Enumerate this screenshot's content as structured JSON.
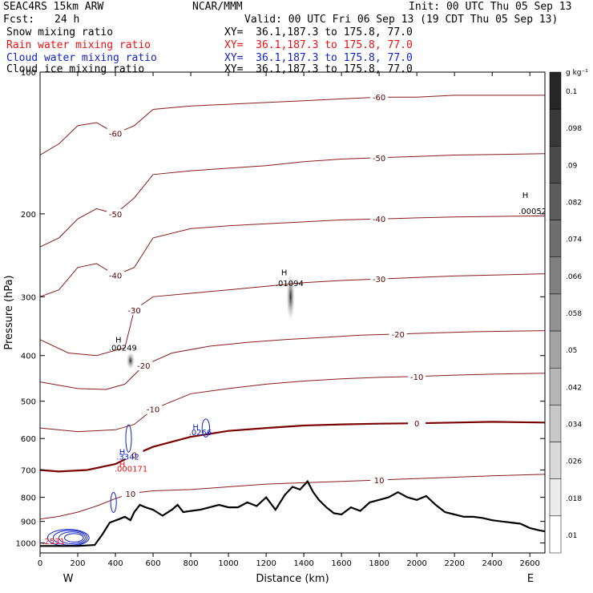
{
  "header": {
    "model": "SEAC4RS 15km ARW",
    "center": "NCAR/MMM",
    "init": "Init: 00 UTC Thu 05 Sep 13",
    "fcst_label": "Fcst:",
    "fcst_value": "24 h",
    "valid": "Valid: 00 UTC Fri 06 Sep 13 (19 CDT Thu 05 Sep 13)"
  },
  "fields": [
    {
      "name": "Snow mixing ratio",
      "xy": "XY=  36.1,187.3 to 175.8, 77.0",
      "color": "#000000"
    },
    {
      "name": "Rain water mixing ratio",
      "xy": "XY=  36.1,187.3 to 175.8, 77.0",
      "color": "#ee1111"
    },
    {
      "name": "Cloud water mixing ratio",
      "xy": "XY=  36.1,187.3 to 175.8, 77.0",
      "color": "#1122cc"
    },
    {
      "name": "Cloud ice mixing ratio",
      "xy": "XY=  36.1,187.3 to 175.8, 77.0",
      "color": "#000000"
    }
  ],
  "chart_data": {
    "type": "contour cross-section",
    "xlabel": "Distance (km)",
    "ylabel": "Pressure (hPa)",
    "x_range": [
      0,
      2680
    ],
    "y_range": [
      1050,
      100
    ],
    "y_scale": "log",
    "x_ticks": [
      0,
      200,
      400,
      600,
      800,
      1000,
      1200,
      1400,
      1600,
      1800,
      2000,
      2200,
      2400,
      2600
    ],
    "y_ticks": [
      100,
      200,
      300,
      400,
      500,
      600,
      700,
      800,
      900,
      1000
    ],
    "x_end_labels": {
      "left": "W",
      "right": "E"
    },
    "isotherms": [
      {
        "label": "10",
        "points": [
          [
            0,
            890
          ],
          [
            100,
            878
          ],
          [
            200,
            860
          ],
          [
            300,
            835
          ],
          [
            400,
            805
          ],
          [
            480,
            785
          ],
          [
            600,
            775
          ],
          [
            800,
            770
          ],
          [
            1000,
            760
          ],
          [
            1200,
            750
          ],
          [
            1400,
            745
          ],
          [
            1600,
            740
          ],
          [
            1800,
            735
          ],
          [
            2000,
            730
          ],
          [
            2200,
            725
          ],
          [
            2400,
            720
          ],
          [
            2680,
            715
          ]
        ]
      },
      {
        "label": "0",
        "points": [
          [
            0,
            700
          ],
          [
            100,
            705
          ],
          [
            250,
            700
          ],
          [
            400,
            680
          ],
          [
            500,
            650
          ],
          [
            600,
            625
          ],
          [
            800,
            595
          ],
          [
            1000,
            578
          ],
          [
            1200,
            570
          ],
          [
            1400,
            563
          ],
          [
            1600,
            560
          ],
          [
            1800,
            558
          ],
          [
            2000,
            557
          ],
          [
            2200,
            555
          ],
          [
            2400,
            553
          ],
          [
            2680,
            555
          ]
        ]
      },
      {
        "label": "-10",
        "points": [
          [
            0,
            570
          ],
          [
            200,
            580
          ],
          [
            400,
            575
          ],
          [
            500,
            560
          ],
          [
            600,
            520
          ],
          [
            800,
            482
          ],
          [
            1000,
            470
          ],
          [
            1200,
            460
          ],
          [
            1400,
            453
          ],
          [
            1600,
            448
          ],
          [
            1800,
            445
          ],
          [
            2000,
            443
          ],
          [
            2200,
            440
          ],
          [
            2400,
            438
          ],
          [
            2680,
            436
          ]
        ]
      },
      {
        "label": "-20",
        "points": [
          [
            0,
            455
          ],
          [
            200,
            470
          ],
          [
            350,
            472
          ],
          [
            450,
            460
          ],
          [
            550,
            420
          ],
          [
            700,
            395
          ],
          [
            900,
            382
          ],
          [
            1100,
            375
          ],
          [
            1300,
            370
          ],
          [
            1500,
            366
          ],
          [
            1700,
            362
          ],
          [
            1900,
            360
          ],
          [
            2100,
            358
          ],
          [
            2300,
            356
          ],
          [
            2680,
            354
          ]
        ]
      },
      {
        "label": "-30",
        "points": [
          [
            0,
            370
          ],
          [
            150,
            395
          ],
          [
            300,
            400
          ],
          [
            450,
            385
          ],
          [
            500,
            320
          ],
          [
            600,
            300
          ],
          [
            800,
            295
          ],
          [
            1000,
            290
          ],
          [
            1200,
            285
          ],
          [
            1400,
            280
          ],
          [
            1600,
            277
          ],
          [
            1800,
            275
          ],
          [
            2000,
            273
          ],
          [
            2200,
            271
          ],
          [
            2680,
            268
          ]
        ]
      },
      {
        "label": "-40",
        "points": [
          [
            0,
            300
          ],
          [
            100,
            290
          ],
          [
            200,
            260
          ],
          [
            300,
            255
          ],
          [
            400,
            270
          ],
          [
            500,
            260
          ],
          [
            600,
            225
          ],
          [
            800,
            215
          ],
          [
            1000,
            212
          ],
          [
            1200,
            210
          ],
          [
            1400,
            208
          ],
          [
            1600,
            206
          ],
          [
            1800,
            205
          ],
          [
            2000,
            204
          ],
          [
            2200,
            203
          ],
          [
            2680,
            202
          ]
        ]
      },
      {
        "label": "-50",
        "points": [
          [
            0,
            235
          ],
          [
            100,
            225
          ],
          [
            200,
            205
          ],
          [
            300,
            195
          ],
          [
            400,
            200
          ],
          [
            500,
            185
          ],
          [
            600,
            165
          ],
          [
            800,
            162
          ],
          [
            1000,
            160
          ],
          [
            1200,
            158
          ],
          [
            1400,
            155
          ],
          [
            1600,
            153
          ],
          [
            1800,
            152
          ],
          [
            2000,
            151
          ],
          [
            2200,
            150
          ],
          [
            2680,
            149
          ]
        ]
      },
      {
        "label": "-60",
        "points": [
          [
            0,
            150
          ],
          [
            100,
            142
          ],
          [
            200,
            130
          ],
          [
            300,
            128
          ],
          [
            400,
            135
          ],
          [
            500,
            130
          ],
          [
            600,
            120
          ],
          [
            800,
            118
          ],
          [
            1000,
            117
          ],
          [
            1200,
            116
          ],
          [
            1400,
            115
          ],
          [
            1600,
            114
          ],
          [
            1800,
            113
          ],
          [
            2000,
            113
          ],
          [
            2200,
            112
          ],
          [
            2680,
            112
          ]
        ]
      }
    ],
    "terrain": [
      [
        0,
        1015
      ],
      [
        200,
        1015
      ],
      [
        290,
        1010
      ],
      [
        330,
        960
      ],
      [
        370,
        905
      ],
      [
        420,
        890
      ],
      [
        450,
        880
      ],
      [
        480,
        895
      ],
      [
        500,
        860
      ],
      [
        530,
        830
      ],
      [
        560,
        840
      ],
      [
        600,
        850
      ],
      [
        650,
        875
      ],
      [
        700,
        850
      ],
      [
        730,
        830
      ],
      [
        760,
        860
      ],
      [
        800,
        855
      ],
      [
        850,
        850
      ],
      [
        900,
        840
      ],
      [
        950,
        830
      ],
      [
        1000,
        840
      ],
      [
        1050,
        840
      ],
      [
        1100,
        820
      ],
      [
        1150,
        835
      ],
      [
        1200,
        800
      ],
      [
        1250,
        850
      ],
      [
        1300,
        790
      ],
      [
        1340,
        760
      ],
      [
        1380,
        770
      ],
      [
        1420,
        740
      ],
      [
        1450,
        780
      ],
      [
        1480,
        810
      ],
      [
        1520,
        840
      ],
      [
        1560,
        865
      ],
      [
        1600,
        870
      ],
      [
        1650,
        840
      ],
      [
        1700,
        855
      ],
      [
        1750,
        820
      ],
      [
        1800,
        810
      ],
      [
        1850,
        800
      ],
      [
        1900,
        780
      ],
      [
        1950,
        800
      ],
      [
        2000,
        810
      ],
      [
        2050,
        795
      ],
      [
        2100,
        830
      ],
      [
        2150,
        860
      ],
      [
        2200,
        870
      ],
      [
        2250,
        880
      ],
      [
        2300,
        880
      ],
      [
        2350,
        885
      ],
      [
        2400,
        895
      ],
      [
        2450,
        900
      ],
      [
        2500,
        905
      ],
      [
        2550,
        910
      ],
      [
        2600,
        930
      ],
      [
        2650,
        940
      ],
      [
        2680,
        945
      ]
    ],
    "cloud_water_contours": [
      {
        "x": 150,
        "p": 975,
        "rx": 110,
        "rp": 40
      },
      {
        "x": 160,
        "p": 975,
        "rx": 90,
        "rp": 35
      },
      {
        "x": 170,
        "p": 975,
        "rx": 70,
        "rp": 28
      },
      {
        "x": 180,
        "p": 975,
        "rx": 50,
        "rp": 20
      },
      {
        "x": 470,
        "p": 600,
        "rx": 15,
        "rp": 40
      },
      {
        "x": 880,
        "p": 570,
        "rx": 20,
        "rp": 25
      },
      {
        "x": 390,
        "p": 820,
        "rx": 15,
        "rp": 40
      }
    ],
    "grayscale_bar": {
      "unit": "g kg⁻¹",
      "labels": [
        "0.1",
        ".098",
        ".09",
        ".082",
        ".074",
        ".066",
        ".058",
        ".05",
        ".042",
        ".034",
        ".026",
        ".018",
        ".01"
      ],
      "colors": [
        "#262626",
        "#383838",
        "#4a4a4a",
        "#5c5c5c",
        "#6e6e6e",
        "#808080",
        "#929292",
        "#a4a4a4",
        "#b6b6b6",
        "#c8c8c8",
        "#dadada",
        "#ececec",
        "#ffffff"
      ]
    },
    "snow_maxima": [
      {
        "x": 1330,
        "p": 300,
        "rx": 25,
        "rp": 40
      },
      {
        "x": 480,
        "p": 410,
        "rx": 25,
        "rp": 20
      }
    ],
    "annotations": [
      {
        "text": "H",
        "x": 400,
        "p": 375,
        "color": "#000000"
      },
      {
        "text": ".00249",
        "x": 365,
        "p": 390,
        "color": "#000000"
      },
      {
        "text": "H",
        "x": 1280,
        "p": 270,
        "color": "#000000"
      },
      {
        "text": ".01094",
        "x": 1250,
        "p": 285,
        "color": "#000000"
      },
      {
        "text": "H",
        "x": 2560,
        "p": 185,
        "color": "#000000"
      },
      {
        "text": ".00052",
        "x": 2540,
        "p": 200,
        "color": "#000000"
      },
      {
        "text": "H",
        "x": 810,
        "p": 575,
        "color": "#1122cc"
      },
      {
        "text": ".0266",
        "x": 790,
        "p": 590,
        "color": "#1122cc"
      },
      {
        "text": "H",
        "x": 420,
        "p": 650,
        "color": "#1122cc"
      },
      {
        "text": ".3342",
        "x": 405,
        "p": 665,
        "color": "#1122cc"
      },
      {
        "text": "H",
        "x": 420,
        "p": 690,
        "color": "#ee1111"
      },
      {
        "text": ".000171",
        "x": 395,
        "p": 705,
        "color": "#ee1111"
      },
      {
        "text": ".2531",
        "x": 10,
        "p": 1005,
        "color": "#ee1111"
      }
    ]
  }
}
